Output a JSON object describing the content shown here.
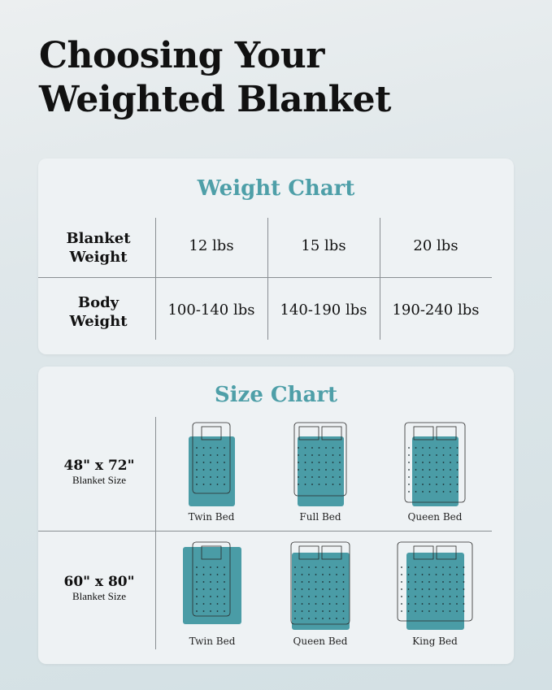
{
  "title_line1": "Choosing Your",
  "title_line2": "Weighted Blanket",
  "weight_chart": {
    "title": "Weight Chart",
    "row_headers": [
      [
        "Blanket",
        "Weight"
      ],
      [
        "Body",
        "Weight"
      ]
    ],
    "blanket_weights": [
      "12 lbs",
      "15 lbs",
      "20 lbs"
    ],
    "body_weights": [
      "100-140 lbs",
      "140-190 lbs",
      "190-240 lbs"
    ]
  },
  "size_chart": {
    "title": "Size Chart",
    "rows": [
      {
        "size": "48\" x 72\"",
        "label": "Blanket Size",
        "beds": [
          "Twin Bed",
          "Full Bed",
          "Queen Bed"
        ]
      },
      {
        "size": "60\" x 80\"",
        "label": "Blanket Size",
        "beds": [
          "Twin Bed",
          "Queen Bed",
          "King Bed"
        ]
      }
    ]
  },
  "colors": {
    "accent": "#4e9fa8",
    "blanket": "#4a9ca6",
    "card": "#eef2f4"
  }
}
